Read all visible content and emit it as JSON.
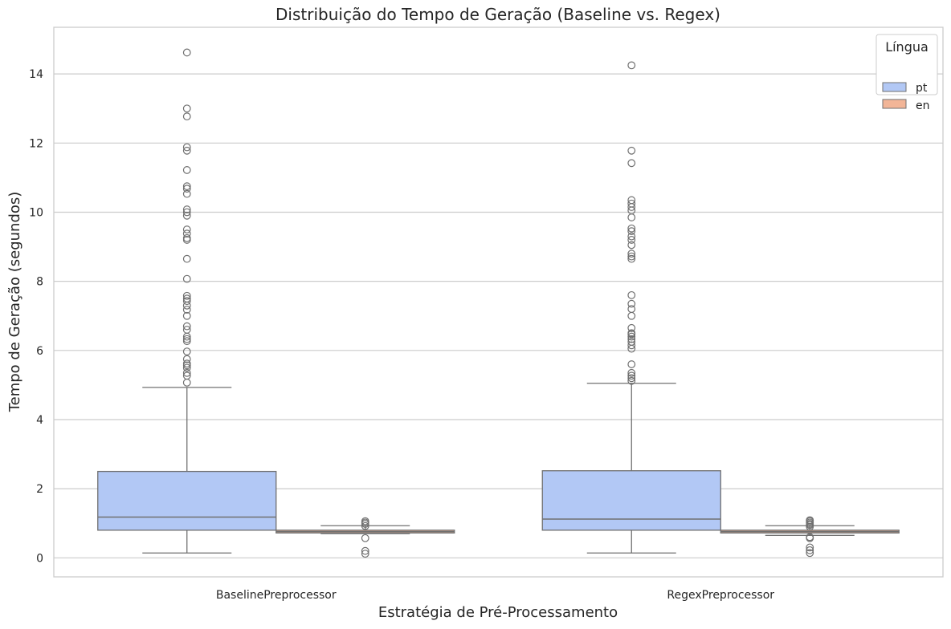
{
  "chart_data": {
    "type": "box",
    "title": "Distribuição do Tempo de Geração (Baseline vs. Regex)",
    "xlabel": "Estratégia de Pré-Processamento",
    "ylabel": "Tempo de Geração (segundos)",
    "categories": [
      "BaselinePreprocessor",
      "RegexPreprocessor"
    ],
    "ylim": [
      -0.55,
      15.35
    ],
    "yticks": [
      0,
      2,
      4,
      6,
      8,
      10,
      12,
      14
    ],
    "grid": "horizontal",
    "legend": {
      "title": "Língua",
      "position": "top-right"
    },
    "series": [
      {
        "name": "pt",
        "color": "#b2c8f5",
        "boxes": [
          {
            "category": "BaselinePreprocessor",
            "whisker_low": 0.14,
            "q1": 0.8,
            "median": 1.18,
            "q3": 2.5,
            "whisker_high": 4.93,
            "outliers": [
              5.07,
              5.27,
              5.35,
              5.5,
              5.57,
              5.62,
              5.75,
              5.97,
              6.27,
              6.33,
              6.4,
              6.6,
              6.7,
              7.0,
              7.18,
              7.3,
              7.43,
              7.5,
              7.58,
              8.07,
              8.65,
              9.2,
              9.25,
              9.38,
              9.5,
              9.9,
              10.0,
              10.08,
              10.53,
              10.68,
              10.75,
              11.22,
              11.78,
              11.88,
              12.77,
              13.0,
              14.62
            ]
          },
          {
            "category": "RegexPreprocessor",
            "whisker_low": 0.14,
            "q1": 0.8,
            "median": 1.12,
            "q3": 2.52,
            "whisker_high": 5.05,
            "outliers": [
              5.12,
              5.2,
              5.27,
              5.35,
              5.6,
              6.05,
              6.15,
              6.25,
              6.33,
              6.4,
              6.47,
              6.5,
              6.65,
              7.0,
              7.2,
              7.35,
              7.6,
              8.65,
              8.72,
              8.8,
              9.05,
              9.2,
              9.3,
              9.45,
              9.53,
              9.85,
              10.05,
              10.15,
              10.25,
              10.35,
              11.42,
              11.78,
              14.25
            ]
          }
        ]
      },
      {
        "name": "en",
        "color": "#f2b597",
        "boxes": [
          {
            "category": "BaselinePreprocessor",
            "whisker_low": 0.7,
            "q1": 0.72,
            "median": 0.76,
            "q3": 0.8,
            "whisker_high": 0.93,
            "outliers": [
              0.12,
              0.2,
              0.57,
              0.92,
              0.98,
              1.02,
              1.06
            ]
          },
          {
            "category": "RegexPreprocessor",
            "whisker_low": 0.65,
            "q1": 0.72,
            "median": 0.76,
            "q3": 0.8,
            "whisker_high": 0.93,
            "outliers": [
              0.14,
              0.22,
              0.3,
              0.57,
              0.6,
              0.9,
              0.95,
              0.98,
              1.02,
              1.06,
              1.09
            ]
          }
        ]
      }
    ]
  }
}
